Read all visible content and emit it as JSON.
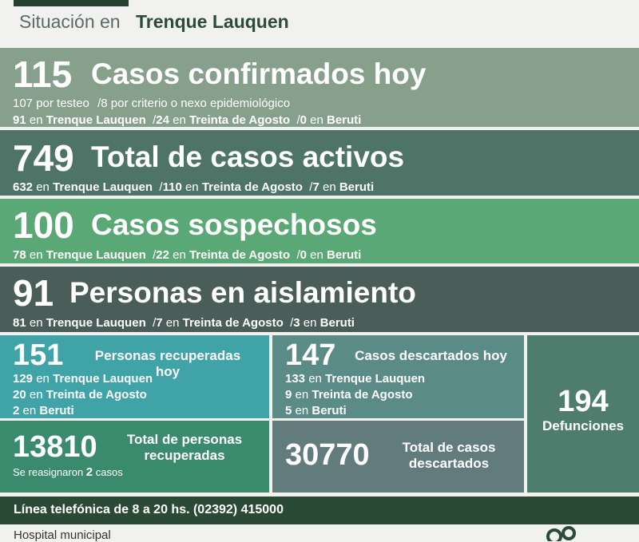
{
  "header": {
    "prefix": "Situación en",
    "city": "Trenque Lauquen"
  },
  "confirmados": {
    "number": "115",
    "title": "Casos confirmados hoy",
    "line1": {
      "testeo": "107 por testeo",
      "sep": "/",
      "criterio": "8 por criterio o nexo epidemiológico"
    },
    "line2": [
      {
        "n": "91",
        "en": "en",
        "place": "Trenque Lauquen"
      },
      {
        "n": "24",
        "en": "en",
        "place": "Treinta de Agosto"
      },
      {
        "n": "0",
        "en": "en",
        "place": "Beruti"
      }
    ]
  },
  "activos": {
    "number": "749",
    "title": "Total de casos activos",
    "line": [
      {
        "n": "632",
        "en": "en",
        "place": "Trenque Lauquen"
      },
      {
        "n": "110",
        "en": "en",
        "place": "Treinta de Agosto"
      },
      {
        "n": "7",
        "en": "en",
        "place": "Beruti"
      }
    ]
  },
  "sospechosos": {
    "number": "100",
    "title": "Casos sospechosos",
    "line": [
      {
        "n": "78",
        "en": "en",
        "place": "Trenque Lauquen"
      },
      {
        "n": "22",
        "en": "en",
        "place": "Treinta de Agosto"
      },
      {
        "n": "0",
        "en": "en",
        "place": "Beruti"
      }
    ]
  },
  "aislamiento": {
    "number": "91",
    "title": "Personas en aislamiento",
    "line": [
      {
        "n": "81",
        "en": "en",
        "place": "Trenque Lauquen"
      },
      {
        "n": "7",
        "en": "en",
        "place": "Treinta de Agosto"
      },
      {
        "n": "3",
        "en": "en",
        "place": "Beruti"
      }
    ]
  },
  "recuperadas": {
    "number": "151",
    "title_line1": "Personas recuperadas",
    "title_line2": "hoy",
    "rows": [
      {
        "n": "129",
        "en": "en",
        "place": "Trenque Lauquen"
      },
      {
        "n": "20",
        "en": "en",
        "place": "Treinta de Agosto"
      },
      {
        "n": "2",
        "en": "en",
        "place": "Beruti"
      }
    ]
  },
  "descartados_hoy": {
    "number": "147",
    "title": "Casos descartados hoy",
    "rows": [
      {
        "n": "133",
        "en": "en",
        "place": "Trenque Lauquen"
      },
      {
        "n": "9",
        "en": "en",
        "place": "Treinta de Agosto"
      },
      {
        "n": "5",
        "en": "en",
        "place": "Beruti"
      }
    ]
  },
  "defunciones": {
    "number": "194",
    "label": "Defunciones"
  },
  "total_recuperadas": {
    "number": "13810",
    "label_line1": "Total de personas",
    "label_line2": "recuperadas",
    "note_pre": "Se reasignaron",
    "note_n": "2",
    "note_post": "casos"
  },
  "total_descartados": {
    "number": "30770",
    "label_line1": "Total de casos",
    "label_line2": "descartados"
  },
  "phone": "Línea telefónica de 8 a 20 hs. (02392) 415000",
  "footer": "Hospital municipal",
  "colors": {
    "confirmados": "#86a08c",
    "activos": "#4d7466",
    "sospechosos": "#5aa876",
    "aislamiento": "#4a5d58",
    "recuperadas": "#3fa3a8",
    "descartados_hoy": "#5b8b86",
    "defunciones": "#4e7d6e",
    "total_recuperadas": "#3a8a6e",
    "total_descartados": "#627c7d",
    "phone": "#2b4a35"
  }
}
